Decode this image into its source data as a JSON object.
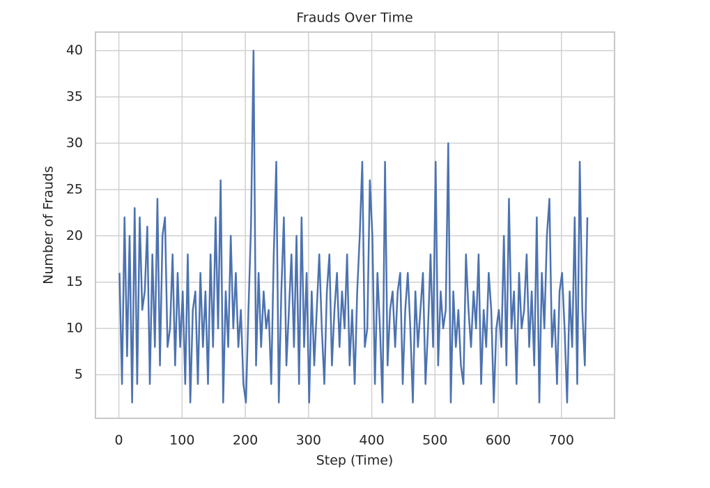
{
  "chart_data": {
    "type": "line",
    "title": "Frauds Over Time",
    "xlabel": "Step (Time)",
    "ylabel": "Number of Frauds",
    "x": [
      1,
      5,
      9,
      13,
      17,
      21,
      25,
      29,
      33,
      37,
      41,
      45,
      49,
      53,
      57,
      61,
      65,
      69,
      73,
      77,
      81,
      85,
      89,
      93,
      97,
      101,
      105,
      109,
      113,
      117,
      121,
      125,
      129,
      133,
      137,
      141,
      145,
      149,
      153,
      157,
      161,
      165,
      169,
      173,
      177,
      181,
      185,
      189,
      193,
      197,
      201,
      205,
      209,
      213,
      217,
      221,
      225,
      229,
      233,
      237,
      241,
      245,
      249,
      253,
      257,
      261,
      265,
      269,
      273,
      277,
      281,
      285,
      289,
      293,
      297,
      301,
      305,
      309,
      313,
      317,
      321,
      325,
      329,
      333,
      337,
      341,
      345,
      349,
      353,
      357,
      361,
      365,
      369,
      373,
      377,
      381,
      385,
      389,
      393,
      397,
      401,
      405,
      409,
      413,
      417,
      421,
      425,
      429,
      433,
      437,
      441,
      445,
      449,
      453,
      457,
      461,
      465,
      469,
      473,
      477,
      481,
      485,
      489,
      493,
      497,
      501,
      505,
      509,
      513,
      517,
      521,
      525,
      529,
      533,
      537,
      541,
      545,
      549,
      553,
      557,
      561,
      565,
      569,
      573,
      577,
      581,
      585,
      589,
      593,
      597,
      601,
      605,
      609,
      613,
      617,
      621,
      625,
      629,
      633,
      637,
      641,
      645,
      649,
      653,
      657,
      661,
      665,
      669,
      673,
      677,
      681,
      685,
      689,
      693,
      697,
      701,
      705,
      709,
      713,
      717,
      721,
      725,
      729,
      733,
      737,
      741
    ],
    "series": [
      {
        "name": "Frauds",
        "color": "#4c72b0",
        "values": [
          16,
          4,
          22,
          7,
          20,
          2,
          23,
          4,
          22,
          12,
          14,
          21,
          4,
          18,
          8,
          24,
          6,
          20,
          22,
          8,
          10,
          18,
          6,
          16,
          8,
          14,
          4,
          18,
          2,
          12,
          14,
          4,
          16,
          8,
          14,
          4,
          18,
          8,
          22,
          10,
          26,
          2,
          14,
          8,
          20,
          10,
          16,
          8,
          12,
          4,
          2,
          12,
          21,
          40,
          6,
          16,
          8,
          14,
          10,
          12,
          4,
          18,
          28,
          2,
          14,
          22,
          6,
          12,
          18,
          8,
          20,
          4,
          22,
          8,
          16,
          2,
          14,
          6,
          12,
          18,
          10,
          4,
          14,
          18,
          6,
          12,
          16,
          8,
          14,
          10,
          18,
          6,
          12,
          4,
          14,
          20,
          28,
          8,
          10,
          26,
          20,
          4,
          16,
          10,
          2,
          28,
          6,
          12,
          14,
          8,
          14,
          16,
          4,
          12,
          16,
          10,
          2,
          14,
          8,
          12,
          16,
          4,
          10,
          18,
          8,
          28,
          6,
          14,
          10,
          12,
          30,
          2,
          14,
          8,
          12,
          6,
          4,
          18,
          12,
          8,
          14,
          10,
          18,
          4,
          12,
          8,
          16,
          12,
          2,
          10,
          12,
          8,
          20,
          6,
          24,
          10,
          14,
          4,
          16,
          10,
          12,
          18,
          8,
          14,
          6,
          22,
          2,
          16,
          10,
          20,
          24,
          8,
          12,
          4,
          14,
          16,
          10,
          2,
          14,
          8,
          22,
          4,
          28,
          12,
          6,
          22
        ]
      }
    ],
    "xlim": [
      -37,
      784
    ],
    "xticks": [
      0,
      100,
      200,
      300,
      400,
      500,
      600,
      700
    ],
    "ylim": [
      0.3,
      42
    ],
    "yticks": [
      5,
      10,
      15,
      20,
      25,
      30,
      35,
      40
    ],
    "grid": true
  }
}
